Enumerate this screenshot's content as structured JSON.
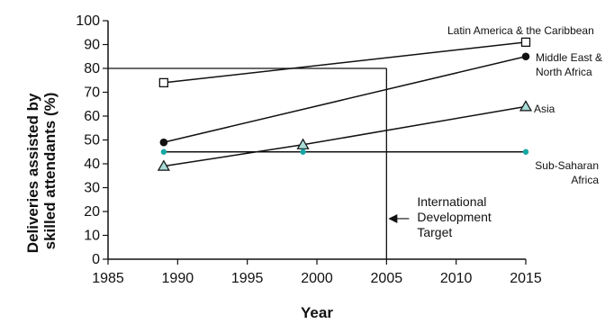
{
  "chart_data": {
    "type": "line",
    "xlabel": "Year",
    "ylabel": "Deliveries assisted by skilled attendants (%)",
    "ylabel_lines": [
      "Deliveries assisted by",
      "skilled attendants (%)"
    ],
    "xlim": [
      1985,
      2015
    ],
    "ylim": [
      0,
      100
    ],
    "x_ticks": [
      1985,
      1990,
      1995,
      2000,
      2005,
      2010,
      2015
    ],
    "y_ticks": [
      0,
      10,
      20,
      30,
      40,
      50,
      60,
      70,
      80,
      90,
      100
    ],
    "grid": false,
    "series": [
      {
        "name": "Latin America & the Caribbean",
        "name_lines": [
          "Latin America & the Caribbean"
        ],
        "marker": "square-open",
        "color": "#111111",
        "marker_fill": "#ffffff",
        "x": [
          1989,
          2015
        ],
        "y": [
          74,
          91
        ]
      },
      {
        "name": "Middle East & North Africa",
        "name_lines": [
          "Middle East &",
          "North Africa"
        ],
        "marker": "circle-filled",
        "color": "#111111",
        "marker_fill": "#111111",
        "x": [
          1989,
          2015
        ],
        "y": [
          49,
          85
        ]
      },
      {
        "name": "Asia",
        "name_lines": [
          "Asia"
        ],
        "marker": "triangle",
        "color": "#111111",
        "marker_fill": "#a8dcd6",
        "x": [
          1989,
          1999,
          2015
        ],
        "y": [
          39,
          48,
          64
        ]
      },
      {
        "name": "Sub-Saharan Africa",
        "name_lines": [
          "Sub-Saharan",
          "Africa"
        ],
        "marker": "circle-teal",
        "color": "#111111",
        "marker_fill": "#18a7a5",
        "x": [
          1989,
          1999,
          2015
        ],
        "y": [
          45,
          45,
          45
        ]
      }
    ],
    "target": {
      "label_lines": [
        "International",
        "Development",
        "Target"
      ],
      "x": 2005,
      "y": 80
    }
  }
}
